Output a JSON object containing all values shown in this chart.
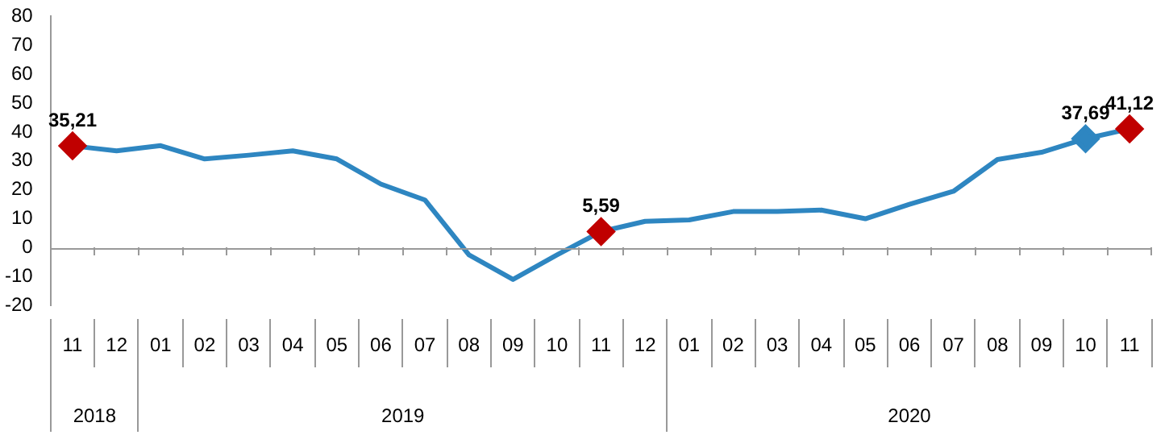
{
  "chart_data": {
    "type": "line",
    "categories": [
      "11",
      "12",
      "01",
      "02",
      "03",
      "04",
      "05",
      "06",
      "07",
      "08",
      "09",
      "10",
      "11",
      "12",
      "01",
      "02",
      "03",
      "04",
      "05",
      "06",
      "07",
      "08",
      "09",
      "10",
      "11"
    ],
    "series": [
      {
        "color": "#2e86c1",
        "values": [
          35.21,
          33.5,
          35.3,
          30.7,
          32,
          33.5,
          30.7,
          22,
          16.5,
          -2.5,
          -11,
          -2.5,
          5.59,
          9.1,
          9.6,
          12.5,
          12.5,
          13,
          10,
          15,
          19.5,
          30.5,
          33,
          37.69,
          41.12
        ],
        "colors": [
          "#c00000",
          null,
          null,
          null,
          null,
          null,
          null,
          null,
          null,
          null,
          null,
          null,
          "#c00000",
          null,
          null,
          null,
          null,
          null,
          null,
          null,
          null,
          null,
          null,
          "#2e86c1",
          "#c00000"
        ],
        "value_labels": [
          "35,21",
          null,
          null,
          null,
          null,
          null,
          null,
          null,
          null,
          null,
          null,
          null,
          "5,59",
          null,
          null,
          null,
          null,
          null,
          null,
          null,
          null,
          null,
          null,
          "37,69",
          "41,12"
        ]
      }
    ],
    "annotations": [
      "2018",
      "2019",
      "2020"
    ],
    "ylim": [
      -20,
      80
    ],
    "yticks": [
      -20,
      -10,
      0,
      10,
      20,
      30,
      40,
      50,
      60,
      70,
      80
    ],
    "ref_lines": [
      {
        "axis": "y",
        "value": 0,
        "color": "#999999"
      }
    ],
    "grid": false,
    "legend": false,
    "line_style": "solid"
  }
}
